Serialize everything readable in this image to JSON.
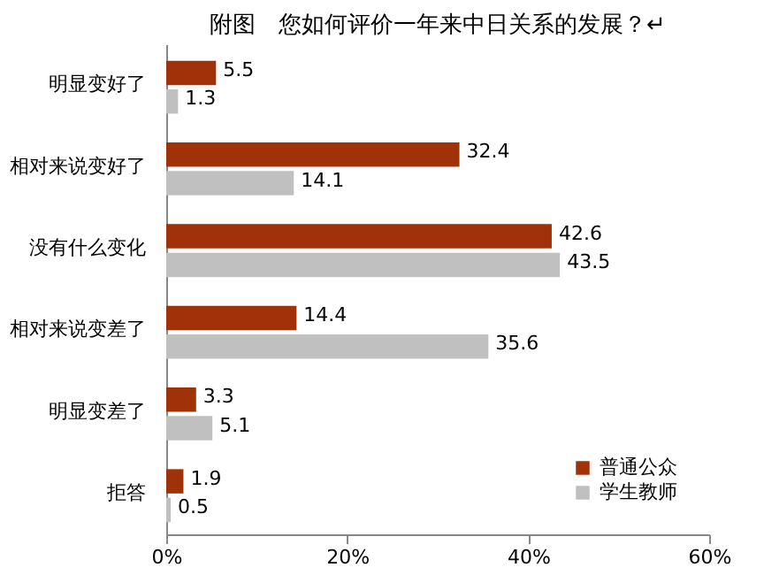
{
  "chart_data": {
    "type": "bar",
    "orientation": "horizontal",
    "title": "附图　您如何评价一年来中日关系的发展？↵",
    "categories": [
      "明显变好了",
      "相对来说变好了",
      "没有什么变化",
      "相对来说变差了",
      "明显变差了",
      "拒答"
    ],
    "series": [
      {
        "name": "普通公众",
        "color": "#a0320a",
        "values": [
          5.5,
          32.4,
          42.6,
          14.4,
          3.3,
          1.9
        ]
      },
      {
        "name": "学生教师",
        "color": "#c0c0c0",
        "values": [
          1.3,
          14.1,
          43.5,
          35.6,
          5.1,
          0.5
        ]
      }
    ],
    "xlim": [
      0,
      60
    ],
    "xticks": [
      {
        "value": 0,
        "label": "0%"
      },
      {
        "value": 20,
        "label": "20%"
      },
      {
        "value": 40,
        "label": "40%"
      },
      {
        "value": 60,
        "label": "60%"
      }
    ],
    "data_labels": true,
    "legend": "bottom right",
    "grid": false
  }
}
